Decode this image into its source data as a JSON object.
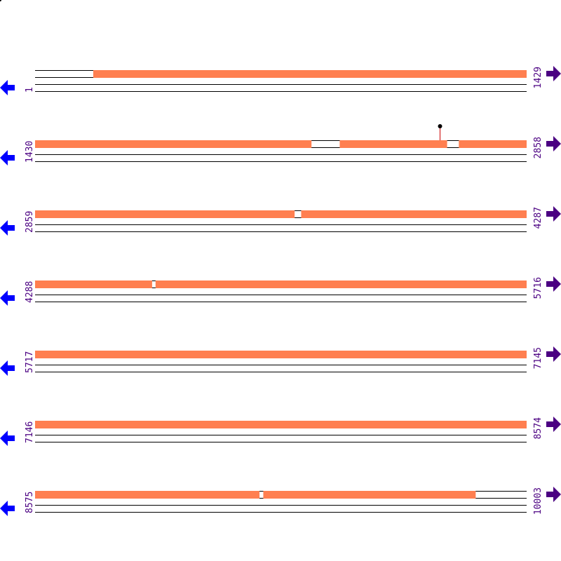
{
  "colors": {
    "coverage": "#ff7f50",
    "line": "#000000",
    "label": "#4b0082",
    "left_arrow": "#0000ff",
    "right_arrow": "#4b0082",
    "marker": "#000000",
    "marker_stem": "#cc0000"
  },
  "icons": {
    "left": "arrow-left-icon",
    "right": "arrow-right-icon"
  },
  "rows_per_line": 1429,
  "rows": [
    {
      "start": "1",
      "end": "1429",
      "covered": [
        [
          170,
          1429
        ]
      ],
      "markers": []
    },
    {
      "start": "1430",
      "end": "2858",
      "covered": [
        [
          1430,
          2233
        ],
        [
          2315,
          2627
        ],
        [
          2661,
          2858
        ]
      ],
      "markers": [
        2606
      ]
    },
    {
      "start": "2859",
      "end": "4287",
      "covered": [
        [
          2859,
          3613
        ],
        [
          3632,
          4287
        ]
      ],
      "markers": []
    },
    {
      "start": "4288",
      "end": "5716",
      "covered": [
        [
          4288,
          4628
        ],
        [
          4638,
          5716
        ]
      ],
      "markers": []
    },
    {
      "start": "5717",
      "end": "7145",
      "covered": [
        [
          5717,
          7145
        ]
      ],
      "markers": []
    },
    {
      "start": "7146",
      "end": "8574",
      "covered": [
        [
          7146,
          8574
        ]
      ],
      "markers": []
    },
    {
      "start": "8575",
      "end": "10003",
      "covered": [
        [
          8575,
          9227
        ],
        [
          9238,
          9855
        ]
      ],
      "markers": []
    }
  ]
}
